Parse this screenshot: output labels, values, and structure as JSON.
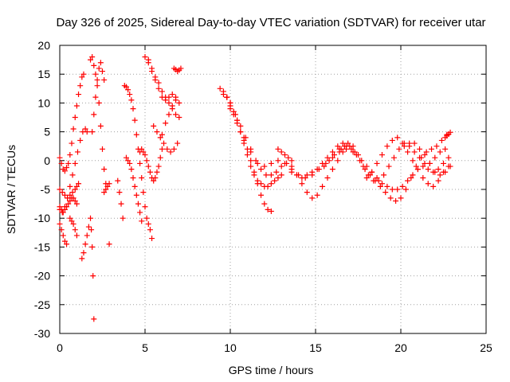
{
  "chart_data": {
    "type": "scatter",
    "title": "Day 326 of 2025, Sidereal Day-to-day VTEC variation (SDTVAR) for receiver utar",
    "xlabel": "GPS time / hours",
    "ylabel": "SDTVAR / TECUs",
    "xlim": [
      0,
      25
    ],
    "ylim": [
      -30,
      20
    ],
    "xticks": [
      "0",
      "5",
      "10",
      "15",
      "20",
      "25"
    ],
    "yticks": [
      "20",
      "15",
      "10",
      "5",
      "0",
      "-5",
      "-10",
      "-15",
      "-20",
      "-25",
      "-30"
    ],
    "grid": true,
    "marker": "plus",
    "color": "#ff0000",
    "series": [
      {
        "name": "s1",
        "x": [
          0.0,
          0.1,
          0.2,
          0.3,
          0.4,
          0.5,
          0.6,
          0.7,
          0.8,
          0.9,
          1.0,
          1.1,
          1.2,
          1.3,
          1.4
        ],
        "y": [
          0.5,
          -0.5,
          -1.5,
          -1.8,
          -1.2,
          -0.5,
          1.0,
          3.0,
          5.5,
          7.5,
          9.5,
          11.5,
          13.0,
          14.5,
          15.0
        ]
      },
      {
        "name": "s2",
        "x": [
          0.0,
          0.15,
          0.3,
          0.45,
          0.6,
          0.75,
          0.9,
          1.05,
          1.2,
          1.35,
          1.5,
          1.6
        ],
        "y": [
          -8.5,
          -9.0,
          -8.0,
          -6.5,
          -4.5,
          -2.5,
          -0.5,
          1.5,
          3.5,
          5.0,
          5.5,
          5.0
        ]
      },
      {
        "name": "s3",
        "x": [
          0.0,
          0.15,
          0.3,
          0.45,
          0.6,
          0.75,
          0.9,
          1.0,
          1.1
        ],
        "y": [
          -5.0,
          -5.5,
          -6.0,
          -6.5,
          -6.0,
          -5.5,
          -5.0,
          -4.5,
          -4.0
        ]
      },
      {
        "name": "s4",
        "x": [
          0.0,
          0.1,
          0.2,
          0.3,
          0.4,
          0.5,
          0.6,
          0.7,
          0.8,
          0.9,
          1.0
        ],
        "y": [
          -8.0,
          -8.5,
          -9.0,
          -8.5,
          -8.0,
          -7.5,
          -7.0,
          -6.5,
          -6.5,
          -7.0,
          -7.5
        ]
      },
      {
        "name": "s5",
        "x": [
          0.0,
          0.1,
          0.2,
          0.3,
          0.4
        ],
        "y": [
          -11.0,
          -12.0,
          -13.0,
          -14.0,
          -14.5
        ]
      },
      {
        "name": "s6",
        "x": [
          0.6,
          0.7,
          0.8,
          0.9,
          1.0
        ],
        "y": [
          -10.0,
          -10.5,
          -11.0,
          -12.0,
          -13.0
        ]
      },
      {
        "name": "s7",
        "x": [
          1.3,
          1.4,
          1.5,
          1.6,
          1.7,
          1.8,
          1.85,
          1.9,
          1.95,
          2.0
        ],
        "y": [
          -17.0,
          -16.0,
          -14.5,
          -13.0,
          -11.5,
          -10.0,
          -12.0,
          -15.0,
          -20.0,
          -27.5
        ]
      },
      {
        "name": "s8",
        "x": [
          1.8,
          1.9,
          2.0,
          2.1,
          2.2,
          2.3,
          2.4,
          2.5,
          2.6,
          2.7
        ],
        "y": [
          17.5,
          18.0,
          16.5,
          15.0,
          13.0,
          10.0,
          6.0,
          2.0,
          -1.5,
          -4.0
        ]
      },
      {
        "name": "s9",
        "x": [
          1.9,
          2.0,
          2.1,
          2.2,
          2.3,
          2.4,
          2.5,
          2.6
        ],
        "y": [
          5.0,
          8.0,
          11.0,
          14.0,
          16.0,
          17.0,
          15.5,
          14.0
        ]
      },
      {
        "name": "s10",
        "x": [
          2.6,
          2.7,
          2.8,
          2.9
        ],
        "y": [
          -5.5,
          -5.0,
          -4.5,
          -4.0
        ]
      },
      {
        "name": "s11",
        "x": [
          2.9
        ],
        "y": [
          -14.5
        ]
      },
      {
        "name": "s12",
        "x": [
          3.4,
          3.5,
          3.6,
          3.7
        ],
        "y": [
          -3.5,
          -5.5,
          -7.5,
          -10.0
        ]
      },
      {
        "name": "s13",
        "x": [
          3.8,
          3.9,
          4.0,
          4.1,
          4.2,
          4.3,
          4.4,
          4.5,
          4.6,
          4.7,
          4.8,
          4.9,
          5.0,
          5.1,
          5.2,
          5.3,
          5.4
        ],
        "y": [
          13.0,
          12.8,
          12.3,
          11.5,
          10.5,
          9.0,
          7.0,
          4.5,
          2.0,
          -0.5,
          -3.0,
          -5.5,
          -8.0,
          -10.0,
          -11.0,
          -12.0,
          -13.5
        ]
      },
      {
        "name": "s14",
        "x": [
          4.2,
          4.3,
          4.4,
          4.5,
          4.6,
          4.7,
          4.8
        ],
        "y": [
          -1.5,
          -3.0,
          -4.5,
          -6.0,
          -7.5,
          -9.0,
          -10.5
        ]
      },
      {
        "name": "s15",
        "x": [
          3.9,
          4.0,
          4.1
        ],
        "y": [
          0.5,
          0.0,
          -0.5
        ]
      },
      {
        "name": "s16",
        "x": [
          4.7,
          4.8,
          4.9,
          5.0,
          5.1,
          5.2,
          5.3,
          5.4,
          5.5,
          5.6,
          5.7,
          5.8,
          5.9,
          6.0
        ],
        "y": [
          1.5,
          2.0,
          1.5,
          1.0,
          0.0,
          -1.0,
          -2.0,
          -3.0,
          -3.5,
          -3.0,
          -2.0,
          -1.0,
          0.5,
          2.0
        ]
      },
      {
        "name": "s17",
        "x": [
          5.0,
          5.2,
          5.4,
          5.6,
          5.8,
          6.0,
          6.2,
          6.4,
          6.6,
          6.8,
          7.0
        ],
        "y": [
          18.0,
          17.0,
          15.5,
          14.0,
          12.5,
          11.0,
          10.5,
          11.0,
          11.5,
          11.0,
          10.0
        ]
      },
      {
        "name": "s18",
        "x": [
          5.2,
          5.4,
          5.6,
          5.8,
          6.0,
          6.2,
          6.4,
          6.6,
          6.8,
          7.0
        ],
        "y": [
          17.5,
          16.0,
          14.5,
          13.5,
          12.0,
          11.0,
          10.0,
          9.0,
          8.0,
          7.5
        ]
      },
      {
        "name": "s19",
        "x": [
          5.5,
          5.7,
          5.9,
          6.1,
          6.3,
          6.5,
          6.7,
          6.9
        ],
        "y": [
          6.0,
          5.0,
          4.0,
          3.0,
          2.0,
          1.5,
          2.0,
          3.0
        ]
      },
      {
        "name": "s20",
        "x": [
          6.0,
          6.2,
          6.4,
          6.6,
          6.8
        ],
        "y": [
          4.5,
          6.5,
          8.0,
          9.5,
          10.5
        ]
      },
      {
        "name": "s21",
        "x": [
          6.7,
          6.8,
          6.9,
          7.0,
          7.1
        ],
        "y": [
          16.0,
          15.8,
          15.5,
          15.7,
          16.0
        ]
      },
      {
        "name": "s22",
        "x": [
          9.4,
          9.6,
          9.8,
          10.0,
          10.2,
          10.4,
          10.6,
          10.8,
          11.0,
          11.2,
          11.4,
          11.6,
          11.8,
          12.0,
          12.2,
          12.4
        ],
        "y": [
          12.5,
          12.0,
          11.0,
          9.5,
          8.0,
          6.5,
          5.0,
          3.5,
          2.0,
          0.0,
          -2.0,
          -4.0,
          -6.0,
          -7.5,
          -8.5,
          -8.8
        ]
      },
      {
        "name": "s23",
        "x": [
          9.6,
          9.8,
          10.0,
          10.2,
          10.4,
          10.6,
          10.8,
          11.0,
          11.2,
          11.4,
          11.6,
          11.8,
          12.0,
          12.2,
          12.4,
          12.6,
          12.8,
          13.0
        ],
        "y": [
          11.5,
          11.0,
          10.0,
          8.5,
          7.0,
          5.0,
          3.0,
          1.0,
          -1.0,
          -2.5,
          -3.5,
          -4.0,
          -4.5,
          -4.5,
          -4.0,
          -3.5,
          -3.0,
          -2.5
        ]
      },
      {
        "name": "s24",
        "x": [
          9.8,
          10.0,
          10.3,
          10.6,
          10.9,
          11.2,
          11.5,
          11.8,
          12.1,
          12.4,
          12.7,
          13.0,
          13.3,
          13.6,
          13.9,
          14.2,
          14.5,
          14.8,
          15.1,
          15.4,
          15.7,
          16.0,
          16.3,
          16.6
        ],
        "y": [
          11.0,
          10.0,
          8.0,
          6.0,
          4.0,
          2.0,
          0.0,
          -1.5,
          -2.5,
          -2.5,
          -2.0,
          -1.0,
          -0.5,
          -1.0,
          -2.5,
          -4.0,
          -5.5,
          -6.5,
          -6.0,
          -4.5,
          -3.0,
          -1.5,
          0.0,
          1.5
        ]
      },
      {
        "name": "s25",
        "x": [
          10.0,
          10.4,
          10.8,
          11.2,
          11.6,
          12.0,
          12.4,
          12.8,
          13.2,
          13.6,
          14.0,
          14.4,
          14.8,
          15.2,
          15.6,
          16.0,
          16.4,
          16.8,
          17.2
        ],
        "y": [
          9.0,
          7.0,
          4.0,
          1.5,
          -0.5,
          -1.0,
          -0.5,
          0.0,
          -0.5,
          -1.5,
          -2.5,
          -3.0,
          -2.5,
          -1.5,
          -0.5,
          0.5,
          1.5,
          2.0,
          1.5
        ]
      },
      {
        "name": "s26",
        "x": [
          12.8,
          13.0,
          13.2,
          13.4,
          13.6
        ],
        "y": [
          2.0,
          1.5,
          1.0,
          0.5,
          0.0
        ]
      },
      {
        "name": "s27",
        "x": [
          13.6,
          13.9,
          14.2,
          14.5,
          14.8,
          15.1,
          15.4,
          15.7,
          16.0,
          16.3,
          16.6,
          16.9,
          17.2,
          17.5,
          17.8,
          18.1,
          18.4,
          18.7,
          19.0,
          19.3,
          19.6,
          19.9,
          20.2,
          20.5,
          20.8,
          21.1,
          21.4,
          21.7,
          22.0,
          22.3,
          22.6
        ],
        "y": [
          -2.0,
          -2.5,
          -3.0,
          -2.5,
          -2.0,
          -1.5,
          -0.5,
          0.5,
          1.5,
          2.5,
          3.0,
          3.0,
          2.5,
          1.0,
          -1.0,
          -2.5,
          -3.5,
          -3.5,
          -2.5,
          -1.0,
          0.5,
          2.0,
          3.0,
          2.5,
          1.5,
          0.5,
          -0.5,
          -0.5,
          0.5,
          1.5,
          2.0
        ]
      },
      {
        "name": "s28",
        "x": [
          15.5,
          15.8,
          16.1,
          16.4,
          16.7,
          17.0,
          17.3,
          17.6,
          17.9,
          18.2,
          18.5,
          18.8,
          19.1,
          19.4,
          19.7,
          20.0,
          20.3,
          20.6,
          20.9,
          21.2,
          21.5,
          21.8,
          22.1,
          22.4,
          22.7
        ],
        "y": [
          -1.0,
          0.0,
          1.0,
          2.0,
          2.5,
          2.5,
          1.5,
          0.0,
          -1.5,
          -2.5,
          -3.5,
          -4.5,
          -5.5,
          -6.5,
          -7.0,
          -6.5,
          -5.0,
          -3.0,
          -1.0,
          0.5,
          1.5,
          2.0,
          2.5,
          3.5,
          4.5
        ]
      },
      {
        "name": "s29",
        "x": [
          16.5,
          16.8,
          17.1,
          17.4,
          17.7,
          18.0,
          18.3,
          18.6,
          18.9,
          19.2,
          19.5,
          19.8,
          20.1,
          20.4,
          20.7,
          21.0,
          21.3,
          21.6,
          21.9,
          22.2,
          22.5,
          22.8
        ],
        "y": [
          2.0,
          2.5,
          2.0,
          1.0,
          0.0,
          -1.0,
          -2.0,
          -3.0,
          -4.0,
          -4.5,
          -5.0,
          -5.0,
          -4.5,
          -3.5,
          -2.5,
          -1.5,
          -1.0,
          -1.5,
          -2.0,
          -1.5,
          -0.5,
          0.5
        ]
      },
      {
        "name": "s30",
        "x": [
          18.0,
          18.3,
          18.6,
          18.9,
          19.2,
          19.5,
          19.8,
          20.1,
          20.4,
          20.7,
          21.0,
          21.3,
          21.6,
          21.9,
          22.2,
          22.5,
          22.8
        ],
        "y": [
          -3.0,
          -2.0,
          -0.5,
          1.0,
          2.5,
          3.5,
          4.0,
          3.0,
          1.5,
          0.0,
          -1.5,
          -3.0,
          -4.0,
          -4.5,
          -3.5,
          -2.0,
          -1.0
        ]
      },
      {
        "name": "s31",
        "x": [
          20.2,
          20.5,
          20.8,
          21.1,
          21.4,
          21.7,
          22.0,
          22.3,
          22.6,
          22.9
        ],
        "y": [
          2.5,
          3.0,
          3.0,
          2.0,
          1.0,
          -0.5,
          -2.0,
          -2.5,
          -2.0,
          -1.0
        ]
      },
      {
        "name": "s32",
        "x": [
          22.6,
          22.7,
          22.8,
          22.9
        ],
        "y": [
          4.0,
          4.3,
          4.6,
          4.9
        ]
      }
    ]
  }
}
